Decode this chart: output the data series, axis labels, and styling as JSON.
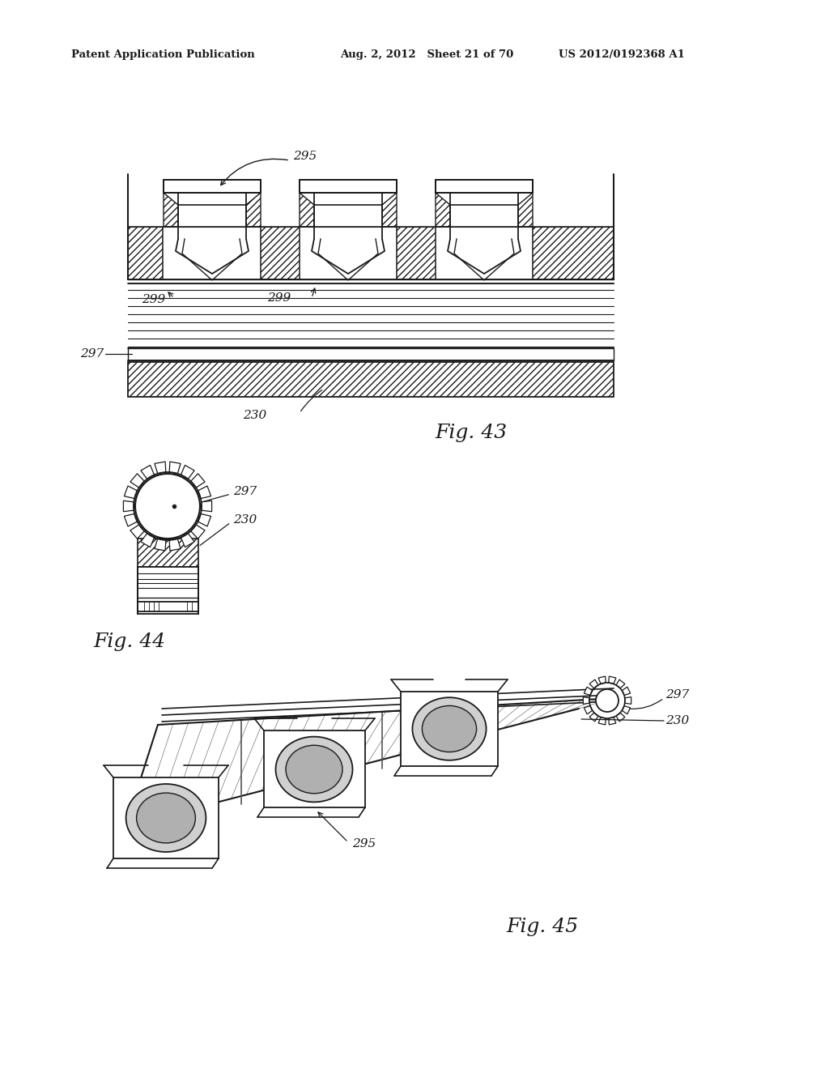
{
  "background_color": "#ffffff",
  "header_left": "Patent Application Publication",
  "header_mid": "Aug. 2, 2012   Sheet 21 of 70",
  "header_right": "US 2012/0192368 A1",
  "fig43_label": "Fig. 43",
  "fig44_label": "Fig. 44",
  "fig45_label": "Fig. 45",
  "line_color": "#1a1a1a"
}
